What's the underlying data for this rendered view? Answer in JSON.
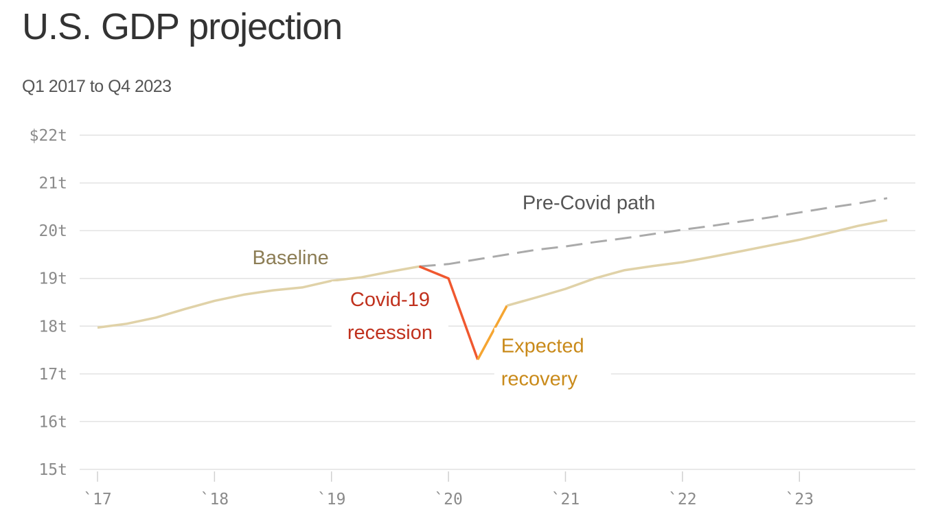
{
  "title": "U.S. GDP projection",
  "subtitle": "Q1 2017 to Q4 2023",
  "colors": {
    "baseline": "#e0d2a8",
    "recession": "#f0582f",
    "recovery": "#f5a531",
    "pre_covid": "#aaaaaa",
    "grid": "#e2e2e2",
    "baseline_label": "#8c7d55",
    "recession_label": "#c0311d",
    "recovery_label": "#c98a1a",
    "pre_covid_label": "#555555"
  },
  "chart_data": {
    "type": "line",
    "title": "U.S. GDP projection",
    "subtitle": "Q1 2017 to Q4 2023",
    "xlabel": "",
    "ylabel": "",
    "ylim": [
      15,
      22
    ],
    "xlim": [
      2017.0,
      2023.75
    ],
    "grid": true,
    "y_ticks": [
      {
        "value": 22,
        "label": "$22t"
      },
      {
        "value": 21,
        "label": "21t"
      },
      {
        "value": 20,
        "label": "20t"
      },
      {
        "value": 19,
        "label": "19t"
      },
      {
        "value": 18,
        "label": "18t"
      },
      {
        "value": 17,
        "label": "17t"
      },
      {
        "value": 16,
        "label": "16t"
      },
      {
        "value": 15,
        "label": "15t"
      }
    ],
    "x_ticks": [
      {
        "value": 2017,
        "label": "`17"
      },
      {
        "value": 2018,
        "label": "`18"
      },
      {
        "value": 2019,
        "label": "`19"
      },
      {
        "value": 2020,
        "label": "`20"
      },
      {
        "value": 2021,
        "label": "`21"
      },
      {
        "value": 2022,
        "label": "`22"
      },
      {
        "value": 2023,
        "label": "`23"
      }
    ],
    "series": [
      {
        "key": "baseline_history",
        "name": "Baseline",
        "style": "solid",
        "color_key": "baseline",
        "points": [
          [
            2017.0,
            17.97
          ],
          [
            2017.25,
            18.05
          ],
          [
            2017.5,
            18.18
          ],
          [
            2017.75,
            18.36
          ],
          [
            2018.0,
            18.53
          ],
          [
            2018.25,
            18.66
          ],
          [
            2018.5,
            18.75
          ],
          [
            2018.75,
            18.81
          ],
          [
            2019.0,
            18.95
          ],
          [
            2019.25,
            19.02
          ],
          [
            2019.5,
            19.14
          ],
          [
            2019.75,
            19.25
          ]
        ]
      },
      {
        "key": "recession",
        "name": "Covid-19 recession",
        "style": "solid",
        "color_key": "recession",
        "points": [
          [
            2019.75,
            19.25
          ],
          [
            2020.0,
            19.0
          ],
          [
            2020.25,
            17.3
          ]
        ]
      },
      {
        "key": "recovery_start",
        "name": "Expected recovery",
        "style": "solid",
        "color_key": "recovery",
        "points": [
          [
            2020.25,
            17.3
          ],
          [
            2020.5,
            18.43
          ]
        ]
      },
      {
        "key": "baseline_projection",
        "name": "Baseline",
        "style": "solid",
        "color_key": "baseline",
        "points": [
          [
            2020.5,
            18.43
          ],
          [
            2020.75,
            18.6
          ],
          [
            2021.0,
            18.78
          ],
          [
            2021.25,
            19.0
          ],
          [
            2021.5,
            19.17
          ],
          [
            2021.75,
            19.26
          ],
          [
            2022.0,
            19.34
          ],
          [
            2022.25,
            19.45
          ],
          [
            2022.5,
            19.57
          ],
          [
            2022.75,
            19.69
          ],
          [
            2023.0,
            19.81
          ],
          [
            2023.25,
            19.95
          ],
          [
            2023.5,
            20.1
          ],
          [
            2023.75,
            20.22
          ]
        ]
      },
      {
        "key": "pre_covid",
        "name": "Pre-Covid path",
        "style": "dashed",
        "color_key": "pre_covid",
        "points": [
          [
            2019.75,
            19.25
          ],
          [
            2020.0,
            19.3
          ],
          [
            2020.25,
            19.4
          ],
          [
            2020.5,
            19.5
          ],
          [
            2020.75,
            19.6
          ],
          [
            2021.0,
            19.67
          ],
          [
            2021.25,
            19.76
          ],
          [
            2021.5,
            19.84
          ],
          [
            2021.75,
            19.93
          ],
          [
            2022.0,
            20.02
          ],
          [
            2022.25,
            20.1
          ],
          [
            2022.5,
            20.19
          ],
          [
            2022.75,
            20.28
          ],
          [
            2023.0,
            20.38
          ],
          [
            2023.25,
            20.48
          ],
          [
            2023.5,
            20.57
          ],
          [
            2023.75,
            20.68
          ]
        ]
      }
    ],
    "annotations": [
      {
        "key": "baseline",
        "lines": [
          "Baseline"
        ],
        "color_key": "baseline_label",
        "x": 2018.65,
        "y": 19.3,
        "anchor": "middle",
        "halo": false
      },
      {
        "key": "pre_covid",
        "lines": [
          "Pre-Covid path"
        ],
        "color_key": "pre_covid_label",
        "x": 2021.2,
        "y": 20.45,
        "anchor": "middle",
        "halo": false
      },
      {
        "key": "recession",
        "lines": [
          "Covid-19",
          "recession"
        ],
        "color_key": "recession_label",
        "x": 2019.5,
        "y": 18.42,
        "anchor": "middle",
        "halo": true
      },
      {
        "key": "recovery",
        "lines": [
          "Expected",
          "recovery"
        ],
        "color_key": "recovery_label",
        "x": 2020.45,
        "y": 17.45,
        "anchor": "start",
        "halo": true
      }
    ]
  }
}
